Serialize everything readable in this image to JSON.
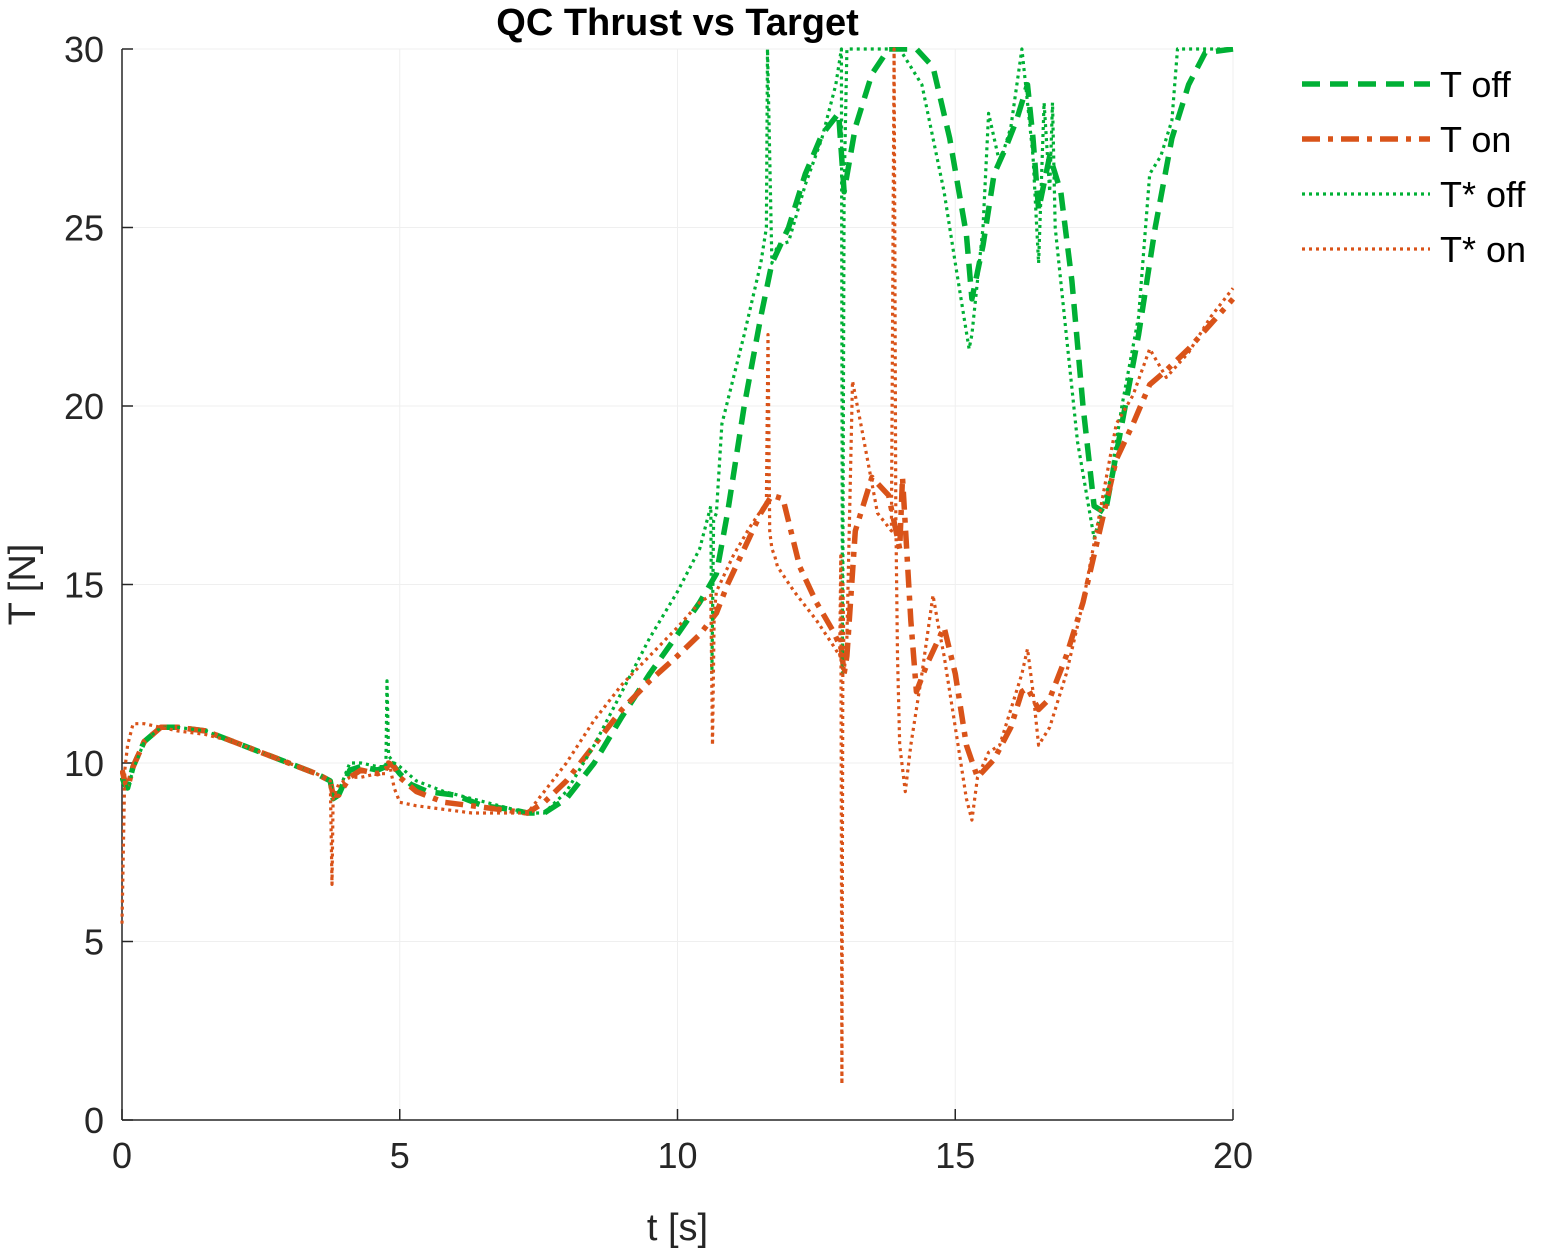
{
  "chart_data": {
    "type": "line",
    "title": "QC Thrust vs Target",
    "xlabel": "t [s]",
    "ylabel": "T [N]",
    "xlim": [
      0,
      20
    ],
    "ylim": [
      0,
      30
    ],
    "xticks": [
      0,
      5,
      10,
      15,
      20
    ],
    "yticks": [
      0,
      5,
      10,
      15,
      20,
      25,
      30
    ],
    "grid": true,
    "legend_position": "outside-top-right",
    "colors": {
      "green": "#00b035",
      "orange": "#d95319"
    },
    "series": [
      {
        "name": "T off",
        "color": "#00b035",
        "style": "dashed",
        "x": [
          0,
          0.05,
          0.1,
          0.2,
          0.4,
          0.7,
          1.0,
          1.5,
          2.0,
          2.5,
          3.0,
          3.5,
          3.75,
          3.8,
          3.9,
          4.1,
          4.3,
          4.6,
          4.75,
          4.8,
          4.9,
          5.0,
          5.2,
          5.5,
          6.0,
          6.5,
          7.0,
          7.3,
          7.6,
          8.0,
          8.5,
          9.0,
          9.5,
          10.0,
          10.4,
          10.7,
          10.9,
          11.2,
          11.5,
          11.7,
          12.0,
          12.3,
          12.6,
          12.9,
          13.0,
          13.2,
          13.5,
          13.8,
          14.0,
          14.3,
          14.6,
          14.9,
          15.2,
          15.3,
          15.5,
          15.7,
          15.9,
          16.1,
          16.3,
          16.4,
          16.5,
          16.7,
          16.9,
          17.1,
          17.3,
          17.5,
          17.7,
          18.0,
          18.3,
          18.6,
          18.9,
          19.2,
          19.5,
          20.0
        ],
        "y": [
          9.6,
          9.4,
          9.3,
          9.9,
          10.6,
          11.0,
          11.0,
          10.9,
          10.6,
          10.3,
          10.0,
          9.7,
          9.5,
          9.0,
          9.1,
          9.8,
          9.9,
          9.8,
          9.9,
          10.1,
          9.9,
          9.7,
          9.4,
          9.2,
          9.1,
          8.8,
          8.7,
          8.6,
          8.6,
          9.0,
          10.0,
          11.3,
          12.5,
          13.6,
          14.5,
          15.3,
          17.0,
          20.0,
          22.5,
          24.0,
          25.0,
          26.5,
          27.6,
          28.2,
          26.0,
          27.8,
          29.3,
          30.0,
          30.0,
          30.0,
          29.5,
          27.5,
          24.8,
          23.0,
          24.5,
          26.5,
          27.2,
          28.0,
          29.0,
          27.5,
          25.5,
          27.0,
          26.0,
          23.5,
          20.0,
          17.2,
          17.0,
          19.5,
          22.0,
          25.0,
          27.5,
          29.0,
          29.9,
          30.0
        ]
      },
      {
        "name": "T on",
        "color": "#d95319",
        "style": "dashdot",
        "x": [
          0,
          0.05,
          0.1,
          0.2,
          0.4,
          0.7,
          1.0,
          1.5,
          2.0,
          2.5,
          3.0,
          3.5,
          3.75,
          3.8,
          3.9,
          4.1,
          4.3,
          4.6,
          4.75,
          4.8,
          4.9,
          5.0,
          5.3,
          5.8,
          6.3,
          6.8,
          7.3,
          7.6,
          8.0,
          8.5,
          9.0,
          9.5,
          10.0,
          10.4,
          10.7,
          10.9,
          11.2,
          11.5,
          11.7,
          11.9,
          12.2,
          12.5,
          12.8,
          12.95,
          13.0,
          13.05,
          13.2,
          13.5,
          13.8,
          14.0,
          14.05,
          14.2,
          14.3,
          14.5,
          14.8,
          15.0,
          15.2,
          15.4,
          15.7,
          16.0,
          16.2,
          16.3,
          16.5,
          16.7,
          17.0,
          17.3,
          17.6,
          17.9,
          18.2,
          18.5,
          18.8,
          19.2,
          19.6,
          20.0
        ],
        "y": [
          9.8,
          9.5,
          9.3,
          9.9,
          10.6,
          11.0,
          11.0,
          10.9,
          10.6,
          10.3,
          10.0,
          9.7,
          9.5,
          9.1,
          9.1,
          9.6,
          9.8,
          9.7,
          9.8,
          10.0,
          9.9,
          9.6,
          9.2,
          8.9,
          8.8,
          8.7,
          8.6,
          8.9,
          9.5,
          10.5,
          11.5,
          12.3,
          13.0,
          13.6,
          14.2,
          15.0,
          16.0,
          17.0,
          17.5,
          17.4,
          15.5,
          14.5,
          13.7,
          13.2,
          12.5,
          13.0,
          16.5,
          18.0,
          17.5,
          16.0,
          18.0,
          14.0,
          12.0,
          12.8,
          13.8,
          12.5,
          10.5,
          9.6,
          10.1,
          11.0,
          12.0,
          12.1,
          11.5,
          11.8,
          13.0,
          14.5,
          16.5,
          18.5,
          19.5,
          20.6,
          21.0,
          21.6,
          22.3,
          23.0
        ]
      },
      {
        "name": "T* off",
        "color": "#00b035",
        "style": "dotted",
        "x": [
          0,
          0.05,
          0.1,
          0.2,
          0.4,
          0.7,
          1.0,
          1.5,
          2.0,
          2.5,
          3.0,
          3.5,
          3.75,
          3.8,
          3.9,
          4.1,
          4.3,
          4.6,
          4.75,
          4.77,
          4.8,
          4.9,
          5.0,
          5.3,
          5.8,
          6.3,
          6.8,
          7.3,
          7.6,
          8.0,
          8.5,
          9.0,
          9.5,
          10.0,
          10.4,
          10.6,
          10.62,
          10.65,
          10.7,
          10.8,
          11.2,
          11.5,
          11.6,
          11.62,
          11.7,
          11.8,
          12.0,
          12.3,
          12.6,
          12.85,
          12.95,
          12.97,
          13.0,
          13.05,
          13.3,
          13.6,
          14.0,
          14.4,
          14.8,
          15.0,
          15.25,
          15.3,
          15.5,
          15.6,
          15.8,
          16.0,
          16.2,
          16.3,
          16.4,
          16.5,
          16.6,
          16.7,
          16.75,
          16.8,
          17.0,
          17.2,
          17.5,
          17.8,
          18.0,
          18.3,
          18.5,
          18.7,
          18.9,
          19.0,
          19.5,
          20.0
        ],
        "y": [
          9.5,
          9.5,
          9.3,
          9.8,
          10.6,
          11.0,
          11.0,
          10.9,
          10.6,
          10.3,
          10.0,
          9.7,
          9.5,
          9.1,
          9.2,
          10.0,
          10.0,
          9.9,
          9.9,
          12.3,
          10.2,
          10.0,
          9.9,
          9.5,
          9.2,
          9.0,
          8.8,
          8.6,
          8.6,
          9.2,
          10.5,
          12.0,
          13.5,
          14.8,
          16.0,
          17.2,
          12.5,
          16.8,
          17.0,
          19.5,
          22.0,
          24.0,
          25.0,
          30.0,
          24.0,
          24.5,
          24.6,
          26.2,
          27.5,
          29.0,
          30.0,
          12.5,
          26.0,
          30.0,
          30.0,
          30.0,
          30.0,
          29.0,
          26.0,
          24.0,
          21.6,
          22.0,
          25.0,
          28.2,
          26.8,
          27.8,
          30.0,
          28.5,
          27.0,
          24.0,
          28.5,
          26.0,
          28.5,
          25.0,
          22.0,
          19.0,
          16.3,
          18.0,
          20.0,
          22.5,
          26.5,
          27.0,
          28.0,
          30.0,
          30.0,
          30.0
        ]
      },
      {
        "name": "T* on",
        "color": "#d95319",
        "style": "dotted",
        "x": [
          0,
          0.05,
          0.1,
          0.2,
          0.4,
          0.7,
          1.0,
          1.5,
          2.0,
          2.5,
          3.0,
          3.5,
          3.75,
          3.78,
          3.8,
          3.9,
          4.1,
          4.3,
          4.6,
          4.75,
          4.8,
          4.9,
          5.0,
          5.3,
          5.8,
          6.3,
          6.8,
          7.3,
          7.6,
          8.0,
          8.5,
          9.0,
          9.5,
          10.0,
          10.4,
          10.6,
          10.63,
          10.66,
          10.7,
          11.0,
          11.3,
          11.6,
          11.63,
          11.66,
          11.7,
          11.75,
          11.8,
          12.1,
          12.5,
          12.8,
          12.92,
          12.94,
          12.96,
          12.98,
          13.0,
          13.05,
          13.15,
          13.3,
          13.6,
          13.85,
          13.9,
          13.93,
          13.96,
          14.0,
          14.1,
          14.2,
          14.4,
          14.6,
          14.7,
          14.8,
          15.0,
          15.2,
          15.3,
          15.4,
          15.6,
          15.8,
          16.0,
          16.2,
          16.3,
          16.4,
          16.5,
          16.7,
          17.0,
          17.3,
          17.6,
          17.9,
          18.2,
          18.5,
          18.8,
          19.2,
          19.6,
          20.0
        ],
        "y": [
          5.5,
          9.8,
          10.5,
          11.1,
          11.1,
          11.0,
          10.9,
          10.8,
          10.6,
          10.3,
          10.0,
          9.7,
          9.5,
          6.6,
          9.0,
          9.4,
          9.6,
          9.6,
          9.7,
          9.7,
          10.1,
          9.3,
          8.9,
          8.8,
          8.7,
          8.6,
          8.6,
          8.6,
          9.2,
          10.0,
          11.2,
          12.2,
          13.0,
          13.8,
          14.5,
          14.7,
          10.5,
          14.2,
          14.8,
          15.8,
          16.6,
          17.3,
          22.0,
          16.5,
          16.0,
          15.8,
          15.5,
          14.8,
          14.0,
          13.3,
          13.0,
          15.8,
          1.0,
          15.0,
          12.5,
          13.5,
          20.7,
          19.5,
          17.0,
          16.5,
          30.0,
          17.0,
          13.0,
          10.5,
          9.2,
          10.5,
          12.5,
          14.7,
          13.8,
          13.0,
          11.0,
          9.0,
          8.4,
          9.6,
          10.3,
          10.5,
          11.5,
          12.5,
          13.2,
          12.0,
          10.5,
          11.0,
          12.5,
          14.5,
          17.0,
          19.5,
          20.3,
          21.6,
          20.8,
          21.5,
          22.5,
          23.3
        ]
      }
    ]
  }
}
